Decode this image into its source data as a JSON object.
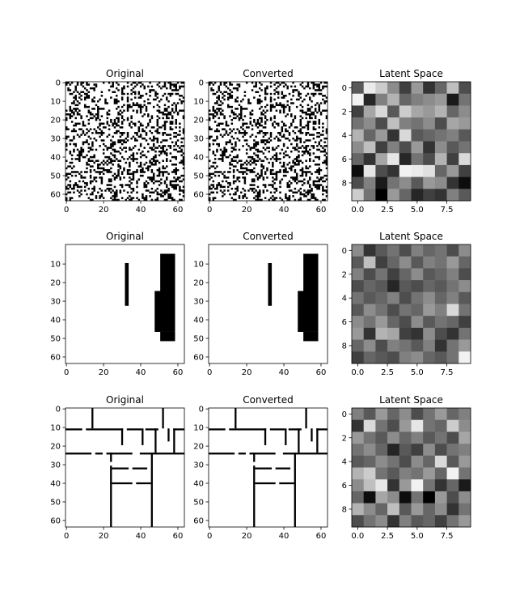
{
  "chart_data": [
    {
      "type": "heatmap",
      "title": "Original",
      "row": 0,
      "col": 0,
      "content": "noise",
      "seed": 11,
      "xticks": [
        0,
        20,
        40,
        60
      ],
      "yticks": [
        0,
        10,
        20,
        30,
        40,
        50,
        60
      ],
      "extent": [
        0,
        64
      ]
    },
    {
      "type": "heatmap",
      "title": "Converted",
      "row": 0,
      "col": 1,
      "content": "noise",
      "seed": 11,
      "xticks": [
        0,
        20,
        40,
        60
      ],
      "yticks": [
        0,
        10,
        20,
        30,
        40,
        50,
        60
      ],
      "extent": [
        0,
        64
      ]
    },
    {
      "type": "heatmap",
      "title": "Latent Space",
      "row": 0,
      "col": 2,
      "content": "latent",
      "colormap": "gray",
      "xticks": [
        "0.0",
        "2.5",
        "5.0",
        "7.5"
      ],
      "yticks": [
        "0",
        "2",
        "4",
        "6",
        "8"
      ],
      "values": [
        [
          0.35,
          0.92,
          0.8,
          0.55,
          0.25,
          0.6,
          0.2,
          0.4,
          0.75,
          0.3
        ],
        [
          0.95,
          0.15,
          0.5,
          0.7,
          0.4,
          0.5,
          0.55,
          0.6,
          0.1,
          0.45
        ],
        [
          0.25,
          0.65,
          0.85,
          0.35,
          0.8,
          0.65,
          0.6,
          0.7,
          0.4,
          0.55
        ],
        [
          0.45,
          0.55,
          0.3,
          0.75,
          0.5,
          0.45,
          0.55,
          0.3,
          0.65,
          0.6
        ],
        [
          0.7,
          0.4,
          0.6,
          0.2,
          0.85,
          0.35,
          0.4,
          0.45,
          0.5,
          0.35
        ],
        [
          0.55,
          0.75,
          0.25,
          0.5,
          0.3,
          0.6,
          0.2,
          0.55,
          0.35,
          0.45
        ],
        [
          0.4,
          0.2,
          0.65,
          0.9,
          0.15,
          0.45,
          0.3,
          0.7,
          0.25,
          0.85
        ],
        [
          0.05,
          0.9,
          0.3,
          0.2,
          0.95,
          0.92,
          0.88,
          0.4,
          0.6,
          0.25
        ],
        [
          0.3,
          0.5,
          0.1,
          0.45,
          0.55,
          0.35,
          0.6,
          0.55,
          0.2,
          0.05
        ],
        [
          0.8,
          0.45,
          0.0,
          0.6,
          0.4,
          0.15,
          0.25,
          0.2,
          0.5,
          0.35
        ]
      ]
    },
    {
      "type": "heatmap",
      "title": "Original",
      "row": 1,
      "col": 0,
      "content": "rects",
      "xticks": [
        0,
        20,
        40,
        60
      ],
      "yticks": [
        10,
        20,
        30,
        40,
        50,
        60
      ],
      "extent": [
        0,
        64
      ],
      "rects": [
        [
          32,
          10,
          34,
          33
        ],
        [
          51,
          5,
          59,
          26
        ],
        [
          48,
          25,
          59,
          47
        ],
        [
          51,
          47,
          59,
          52
        ]
      ]
    },
    {
      "type": "heatmap",
      "title": "Converted",
      "row": 1,
      "col": 1,
      "content": "rects",
      "xticks": [
        0,
        20,
        40,
        60
      ],
      "yticks": [
        10,
        20,
        30,
        40,
        50,
        60
      ],
      "extent": [
        0,
        64
      ],
      "rects": [
        [
          32,
          10,
          34,
          33
        ],
        [
          51,
          5,
          59,
          26
        ],
        [
          48,
          25,
          59,
          47
        ],
        [
          51,
          47,
          59,
          52
        ]
      ]
    },
    {
      "type": "heatmap",
      "title": "Latent Space",
      "row": 1,
      "col": 2,
      "content": "latent",
      "colormap": "gray",
      "xticks": [
        "0.0",
        "2.5",
        "5.0",
        "7.5"
      ],
      "yticks": [
        "0",
        "2",
        "4",
        "6",
        "8"
      ],
      "values": [
        [
          0.55,
          0.2,
          0.35,
          0.45,
          0.3,
          0.5,
          0.4,
          0.45,
          0.3,
          0.55
        ],
        [
          0.35,
          0.75,
          0.25,
          0.4,
          0.55,
          0.35,
          0.5,
          0.45,
          0.6,
          0.4
        ],
        [
          0.5,
          0.3,
          0.45,
          0.25,
          0.4,
          0.55,
          0.35,
          0.4,
          0.5,
          0.3
        ],
        [
          0.3,
          0.4,
          0.35,
          0.15,
          0.35,
          0.3,
          0.4,
          0.35,
          0.45,
          0.55
        ],
        [
          0.45,
          0.35,
          0.4,
          0.5,
          0.3,
          0.45,
          0.55,
          0.4,
          0.5,
          0.35
        ],
        [
          0.35,
          0.55,
          0.45,
          0.3,
          0.45,
          0.4,
          0.6,
          0.5,
          0.85,
          0.45
        ],
        [
          0.55,
          0.45,
          0.6,
          0.4,
          0.3,
          0.55,
          0.35,
          0.45,
          0.4,
          0.25
        ],
        [
          0.6,
          0.2,
          0.7,
          0.65,
          0.25,
          0.2,
          0.55,
          0.3,
          0.2,
          0.45
        ],
        [
          0.4,
          0.55,
          0.3,
          0.5,
          0.45,
          0.35,
          0.5,
          0.2,
          0.45,
          0.6
        ],
        [
          0.25,
          0.4,
          0.35,
          0.3,
          0.5,
          0.55,
          0.4,
          0.35,
          0.45,
          0.95
        ]
      ]
    },
    {
      "type": "heatmap",
      "title": "Original",
      "row": 2,
      "col": 0,
      "content": "walls",
      "xticks": [
        0,
        20,
        40,
        60
      ],
      "yticks": [
        0,
        10,
        20,
        30,
        40,
        50,
        60
      ],
      "extent": [
        0,
        64
      ],
      "rects": [
        [
          14,
          0,
          15,
          11
        ],
        [
          52,
          0,
          53,
          11
        ],
        [
          0,
          11,
          9,
          12
        ],
        [
          11,
          11,
          31,
          12
        ],
        [
          33,
          11,
          41,
          12
        ],
        [
          43,
          11,
          50,
          12
        ],
        [
          58,
          11,
          64,
          12
        ],
        [
          30,
          11,
          31,
          20
        ],
        [
          41,
          11,
          42,
          20
        ],
        [
          48,
          11,
          49,
          24
        ],
        [
          55,
          11,
          56,
          18
        ],
        [
          58,
          11,
          59,
          24
        ],
        [
          0,
          24,
          14,
          25
        ],
        [
          16,
          24,
          20,
          25
        ],
        [
          22,
          24,
          36,
          25
        ],
        [
          40,
          24,
          64,
          25
        ],
        [
          24,
          24,
          25,
          29
        ],
        [
          24,
          31,
          25,
          64
        ],
        [
          46,
          24,
          47,
          64
        ],
        [
          25,
          32,
          34,
          33
        ],
        [
          36,
          32,
          44,
          33
        ],
        [
          25,
          40,
          36,
          41
        ],
        [
          38,
          40,
          46,
          41
        ]
      ]
    },
    {
      "type": "heatmap",
      "title": "Converted",
      "row": 2,
      "col": 1,
      "content": "walls",
      "xticks": [
        0,
        20,
        40,
        60
      ],
      "yticks": [
        0,
        10,
        20,
        30,
        40,
        50,
        60
      ],
      "extent": [
        0,
        64
      ],
      "rects": [
        [
          14,
          0,
          15,
          11
        ],
        [
          52,
          0,
          53,
          11
        ],
        [
          0,
          11,
          9,
          12
        ],
        [
          11,
          11,
          31,
          12
        ],
        [
          33,
          11,
          41,
          12
        ],
        [
          43,
          11,
          50,
          12
        ],
        [
          58,
          11,
          64,
          12
        ],
        [
          30,
          11,
          31,
          20
        ],
        [
          41,
          11,
          42,
          20
        ],
        [
          48,
          11,
          49,
          24
        ],
        [
          55,
          11,
          56,
          18
        ],
        [
          58,
          11,
          59,
          24
        ],
        [
          0,
          24,
          14,
          25
        ],
        [
          16,
          24,
          20,
          25
        ],
        [
          22,
          24,
          36,
          25
        ],
        [
          40,
          24,
          64,
          25
        ],
        [
          24,
          24,
          25,
          29
        ],
        [
          24,
          31,
          25,
          64
        ],
        [
          46,
          24,
          47,
          64
        ],
        [
          25,
          32,
          34,
          33
        ],
        [
          36,
          32,
          44,
          33
        ],
        [
          25,
          40,
          36,
          41
        ],
        [
          38,
          40,
          46,
          41
        ]
      ]
    },
    {
      "type": "heatmap",
      "title": "Latent Space",
      "row": 2,
      "col": 2,
      "content": "latent",
      "colormap": "gray",
      "xticks": [
        "0.0",
        "2.5",
        "5.0",
        "7.5"
      ],
      "yticks": [
        "0",
        "2",
        "4",
        "6",
        "8"
      ],
      "values": [
        [
          0.5,
          0.35,
          0.6,
          0.4,
          0.55,
          0.3,
          0.45,
          0.6,
          0.4,
          0.5
        ],
        [
          0.2,
          0.85,
          0.45,
          0.3,
          0.6,
          0.9,
          0.45,
          0.4,
          0.8,
          0.55
        ],
        [
          0.6,
          0.45,
          0.35,
          0.55,
          0.4,
          0.5,
          0.35,
          0.45,
          0.3,
          0.65
        ],
        [
          0.45,
          0.55,
          0.4,
          0.15,
          0.35,
          0.25,
          0.55,
          0.3,
          0.45,
          0.5
        ],
        [
          0.35,
          0.4,
          0.55,
          0.45,
          0.3,
          0.55,
          0.4,
          0.85,
          0.35,
          0.6
        ],
        [
          0.7,
          0.8,
          0.45,
          0.35,
          0.5,
          0.45,
          0.6,
          0.4,
          0.95,
          0.45
        ],
        [
          0.55,
          0.75,
          0.9,
          0.2,
          0.6,
          0.95,
          0.45,
          0.2,
          0.4,
          0.1
        ],
        [
          0.4,
          0.05,
          0.65,
          0.55,
          0.05,
          0.45,
          0.0,
          0.6,
          0.3,
          0.55
        ],
        [
          0.7,
          0.55,
          0.4,
          0.75,
          0.35,
          0.6,
          0.4,
          0.55,
          0.2,
          0.45
        ],
        [
          0.3,
          0.45,
          0.55,
          0.2,
          0.5,
          0.35,
          0.4,
          0.25,
          0.45,
          0.6
        ]
      ]
    }
  ]
}
